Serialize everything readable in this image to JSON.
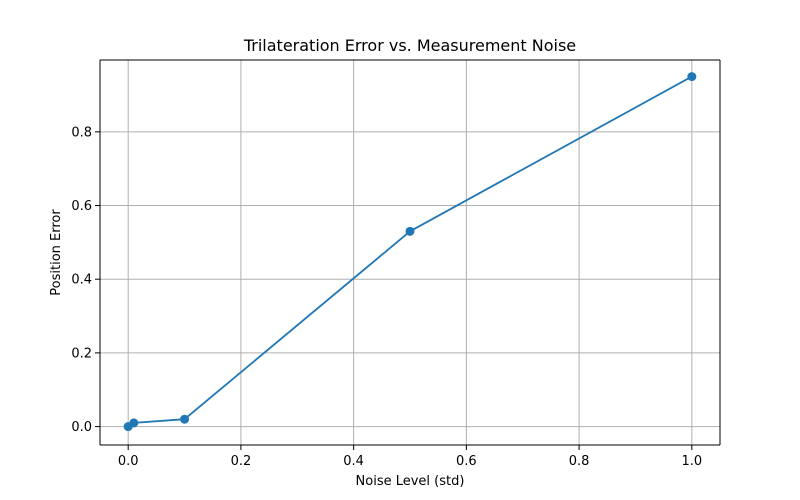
{
  "chart_data": {
    "type": "line",
    "title": "Trilateration Error vs. Measurement Noise",
    "xlabel": "Noise Level (std)",
    "ylabel": "Position Error",
    "xlim": [
      -0.05,
      1.05
    ],
    "ylim": [
      -0.05,
      0.995
    ],
    "x_ticks": [
      0.0,
      0.2,
      0.4,
      0.6,
      0.8,
      1.0
    ],
    "x_tick_labels": [
      "0.0",
      "0.2",
      "0.4",
      "0.6",
      "0.8",
      "1.0"
    ],
    "y_ticks": [
      0.0,
      0.2,
      0.4,
      0.6,
      0.8
    ],
    "y_tick_labels": [
      "0.0",
      "0.2",
      "0.4",
      "0.6",
      "0.8"
    ],
    "grid": true,
    "series": [
      {
        "color": "#1f77b4",
        "marker": "circle",
        "x": [
          0.0,
          0.01,
          0.1,
          0.5,
          1.0
        ],
        "y": [
          0.0,
          0.01,
          0.02,
          0.53,
          0.95
        ]
      }
    ]
  }
}
